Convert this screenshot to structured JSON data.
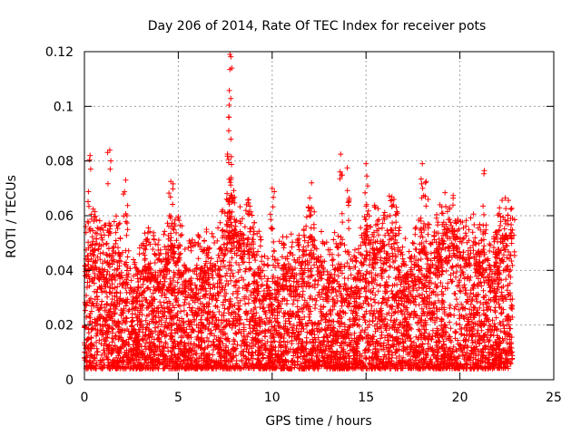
{
  "chart_data": {
    "type": "scatter",
    "title": "Day 206 of 2014, Rate Of TEC Index for receiver pots",
    "xlabel": "GPS time / hours",
    "ylabel": "ROTI / TECUs",
    "xlim": [
      0,
      25
    ],
    "ylim": [
      0,
      0.12
    ],
    "x_ticks": [
      "0",
      "5",
      "10",
      "15",
      "20",
      "25"
    ],
    "y_ticks": [
      "0",
      "0.02",
      "0.04",
      "0.06",
      "0.08",
      "0.1",
      "0.12"
    ],
    "x_tick_values": [
      0,
      5,
      10,
      15,
      20,
      25
    ],
    "y_tick_values": [
      0,
      0.02,
      0.04,
      0.06,
      0.08,
      0.1,
      0.12
    ],
    "grid": true,
    "marker": "+",
    "series": [
      {
        "name": "ROTI",
        "color": "#ff0000",
        "x_range": [
          0,
          22.8
        ],
        "typical_range": [
          0.005,
          0.045
        ],
        "notable_points": [
          {
            "x": 7.75,
            "y": 0.119
          },
          {
            "x": 7.75,
            "y": 0.1135
          },
          {
            "x": 7.7,
            "y": 0.096
          },
          {
            "x": 7.8,
            "y": 0.088
          },
          {
            "x": 1.35,
            "y": 0.084
          },
          {
            "x": 13.65,
            "y": 0.0825
          },
          {
            "x": 0.3,
            "y": 0.082
          },
          {
            "x": 15.0,
            "y": 0.079
          },
          {
            "x": 18.0,
            "y": 0.079
          },
          {
            "x": 21.3,
            "y": 0.0765
          },
          {
            "x": 14.0,
            "y": 0.0775
          },
          {
            "x": 4.6,
            "y": 0.0725
          },
          {
            "x": 10.0,
            "y": 0.07
          },
          {
            "x": 12.1,
            "y": 0.072
          },
          {
            "x": 18.2,
            "y": 0.0725
          },
          {
            "x": 2.2,
            "y": 0.073
          },
          {
            "x": 22.8,
            "y": 0.059
          }
        ]
      }
    ]
  }
}
